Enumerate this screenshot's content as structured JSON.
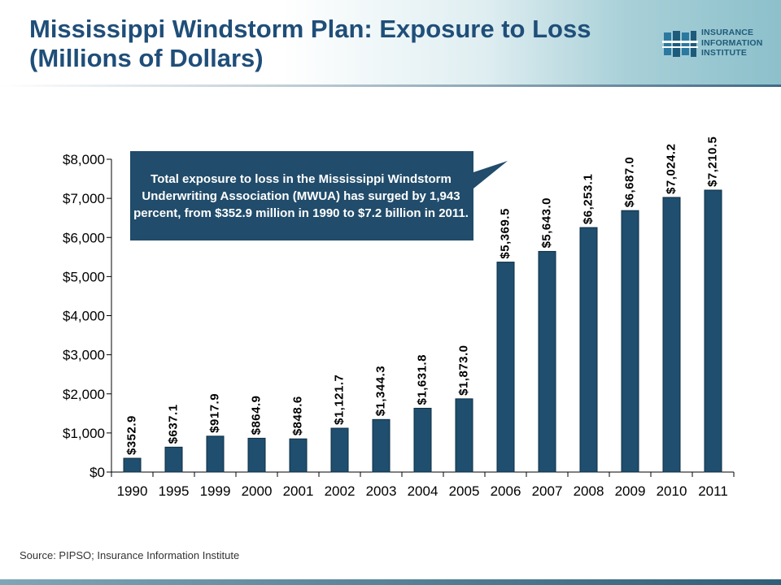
{
  "slide": {
    "title": "Mississippi Windstorm Plan: Exposure to Loss (Millions of Dollars)",
    "source": "Source: PIPSO; Insurance Information Institute",
    "callout": "Total exposure to loss in the Mississippi Windstorm Underwriting Association (MWUA) has surged by 1,943 percent, from $352.9 million in 1990 to $7.2 billion in 2011."
  },
  "logo": {
    "line1": "INSURANCE",
    "line2": "INFORMATION",
    "line3": "INSTITUTE"
  },
  "colors": {
    "title": "#1f4e79",
    "bar": "#1f4e6e",
    "callout": "#214c6b"
  },
  "chart_data": {
    "type": "bar",
    "categories": [
      "1990",
      "1995",
      "1999",
      "2000",
      "2001",
      "2002",
      "2003",
      "2004",
      "2005",
      "2006",
      "2007",
      "2008",
      "2009",
      "2010",
      "2011"
    ],
    "values": [
      352.9,
      637.1,
      917.9,
      864.9,
      848.6,
      1121.7,
      1344.3,
      1631.8,
      1873.0,
      5369.5,
      5643.0,
      6253.1,
      6687.0,
      7024.2,
      7210.5
    ],
    "data_labels": [
      "$352.9",
      "$637.1",
      "$917.9",
      "$864.9",
      "$848.6",
      "$1,121.7",
      "$1,344.3",
      "$1,631.8",
      "$1,873.0",
      "$5,369.5",
      "$5,643.0",
      "$6,253.1",
      "$6,687.0",
      "$7,024.2",
      "$7,210.5"
    ],
    "y_ticks": [
      0,
      1000,
      2000,
      3000,
      4000,
      5000,
      6000,
      7000,
      8000
    ],
    "y_tick_labels": [
      "$0",
      "$1,000",
      "$2,000",
      "$3,000",
      "$4,000",
      "$5,000",
      "$6,000",
      "$7,000",
      "$8,000"
    ],
    "ylim": [
      0,
      8000
    ],
    "title": "",
    "xlabel": "",
    "ylabel": "",
    "grid": false,
    "legend": "none"
  }
}
